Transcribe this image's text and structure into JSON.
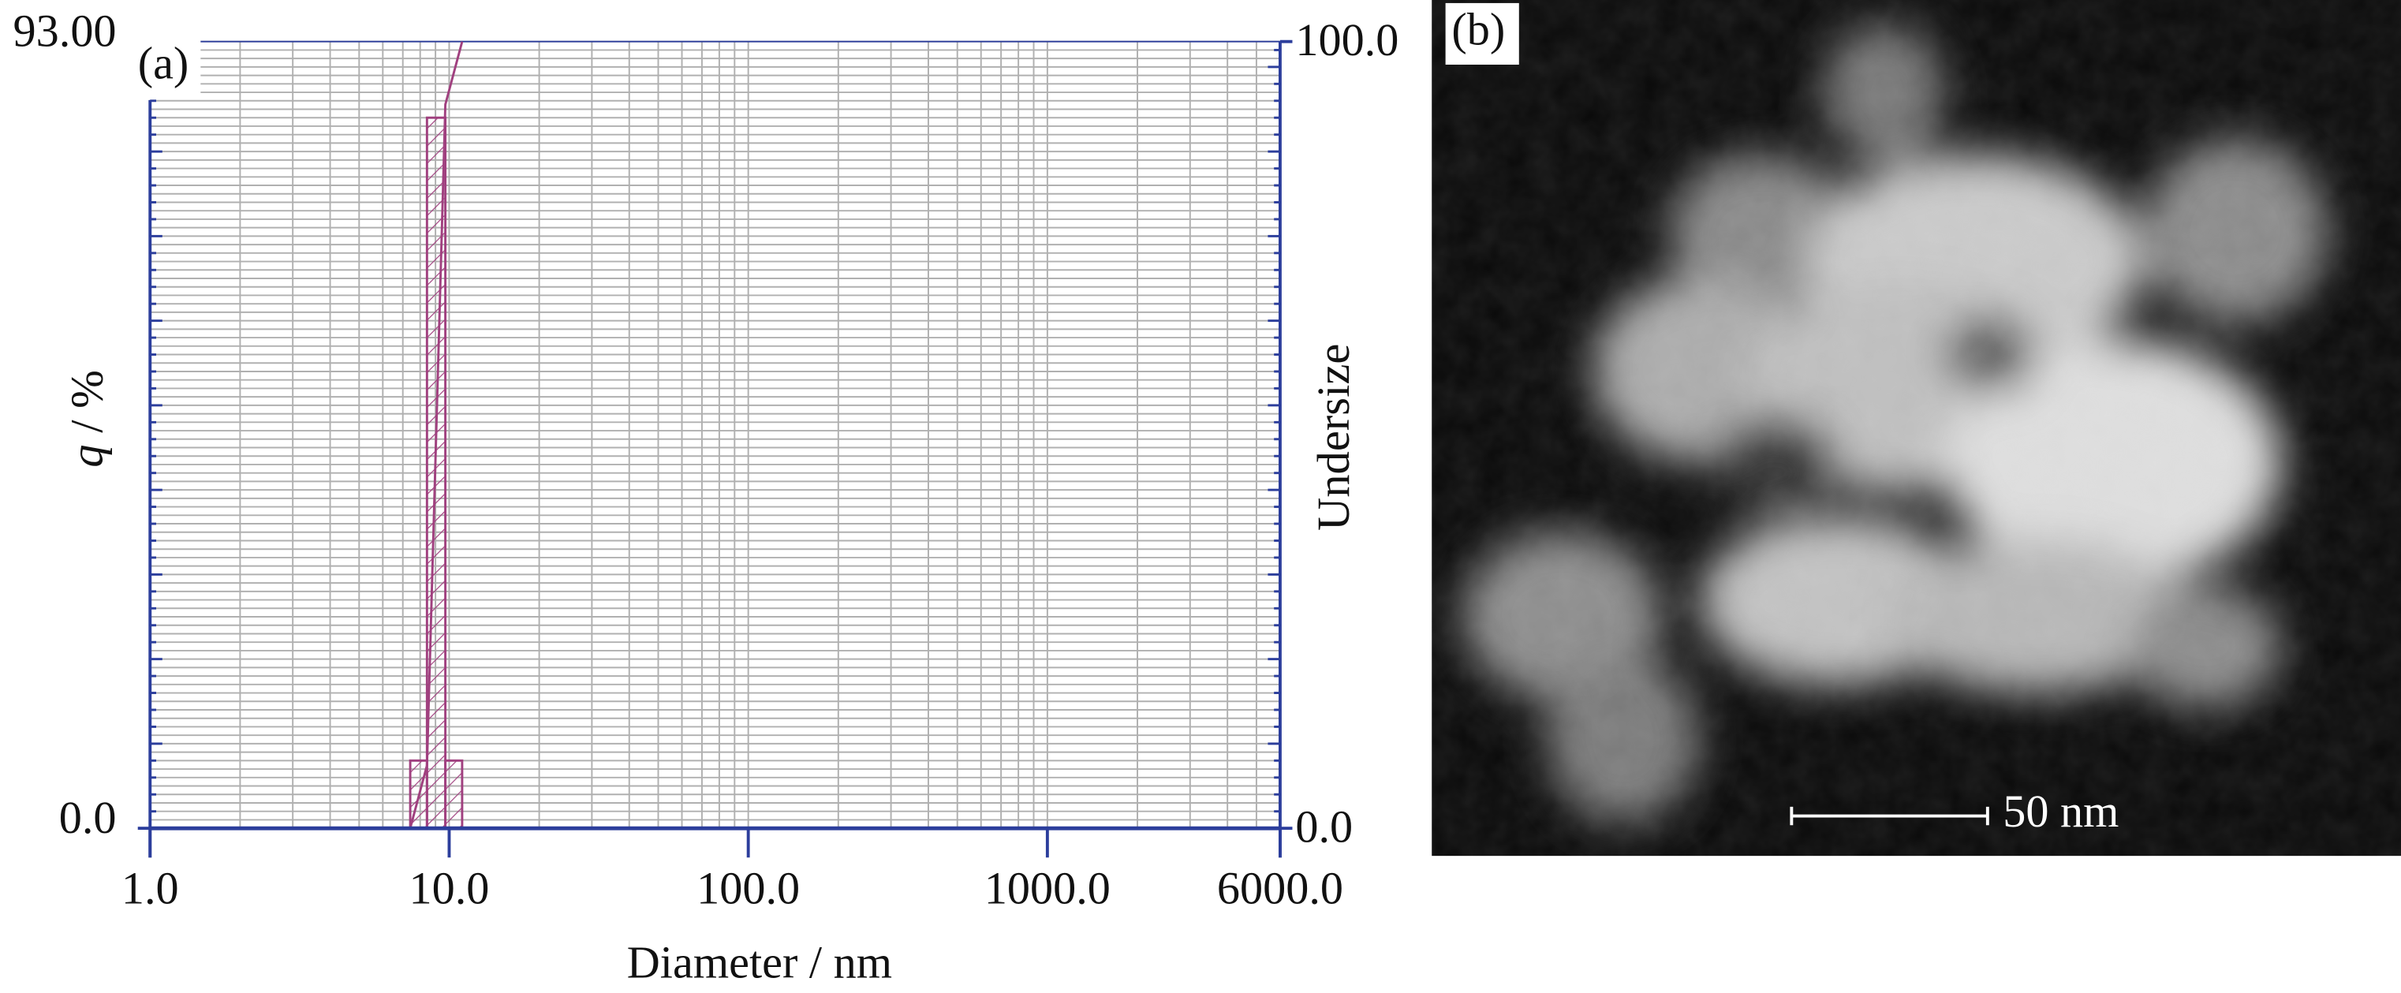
{
  "chart_data": {
    "type": "histogram",
    "panel_label": "(a)",
    "xlabel": "Diameter / nm",
    "ylabel_symbol": "q",
    "ylabel_unit": " / %",
    "y2label": "Undersize",
    "xscale": "log",
    "xlim": [
      1,
      6000
    ],
    "xticks": [
      {
        "value": 1,
        "label": "1.0"
      },
      {
        "value": 10,
        "label": "10.0"
      },
      {
        "value": 100,
        "label": "100.0"
      },
      {
        "value": 1000,
        "label": "1000.0"
      },
      {
        "value": 6000,
        "label": "6000.0"
      }
    ],
    "ylim": [
      0,
      93
    ],
    "yticks": [
      {
        "value": 0,
        "label": "0.0"
      },
      {
        "value": 93,
        "label": "93.00"
      }
    ],
    "y2lim": [
      0,
      100
    ],
    "y2ticks": [
      {
        "value": 0,
        "label": "0.0"
      },
      {
        "value": 100,
        "label": "100.0"
      }
    ],
    "bins": [
      7.41,
      8.43,
      9.71,
      11.05
    ],
    "values": [
      8,
      84,
      8
    ],
    "color": "#a0407f",
    "axis_color": "#2c3e9c",
    "grid": true,
    "cumulative": {
      "axis": "y2",
      "x": [
        7.41,
        8.43,
        9.71,
        11.05
      ],
      "values": [
        0,
        8,
        92,
        100
      ]
    }
  },
  "image_panel": {
    "panel_label": "(b)",
    "scale_bar": "50 nm"
  }
}
